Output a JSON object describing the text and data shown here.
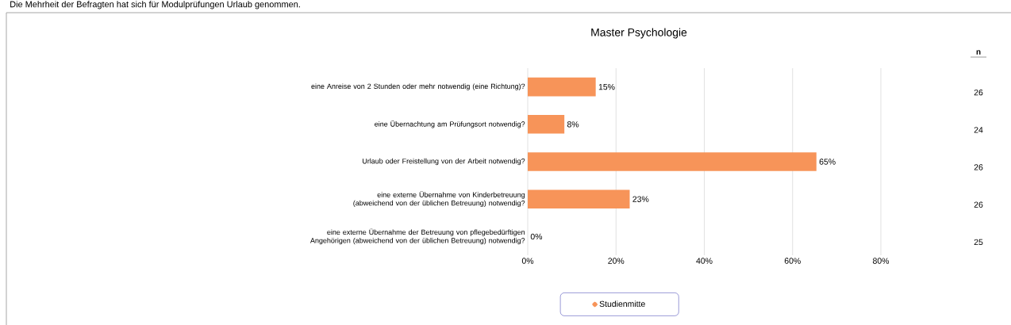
{
  "chart_data": {
    "type": "bar",
    "orientation": "horizontal",
    "title": "Master Psychologie",
    "categories": [
      "eine Anreise von 2 Stunden oder mehr notwendig (eine Richtung)?",
      "eine Übernachtung am Prüfungsort notwendig?",
      "Urlaub oder Freistellung von der Arbeit notwendig?",
      "eine externe Übernahme von Kinderbetreuung (abweichend von der üblichen Betreuung) notwendig?",
      "eine externe Übernahme der Betreuung von pflegebedürftigen Angehörigen (abweichend von der üblichen Betreuung) notwendig?"
    ],
    "series": [
      {
        "name": "Studienmitte",
        "color": "#f79459",
        "values": [
          15.4,
          8.3,
          65.4,
          23.1,
          0
        ],
        "value_labels": [
          "15%",
          "8%",
          "65%",
          "23%",
          "0%"
        ]
      }
    ],
    "xlim": [
      0,
      80
    ],
    "xticks": [
      {
        "value": 0,
        "label": "0%"
      },
      {
        "value": 20,
        "label": "20%"
      },
      {
        "value": 40,
        "label": "40%"
      },
      {
        "value": 60,
        "label": "60%"
      },
      {
        "value": 80,
        "label": "80%"
      }
    ],
    "grid": "x",
    "legend": "bottom",
    "annotations": [
      "Die Mehrheit der Befragten hat sich für Modulprüfungen Urlaub genommen.",
      "n",
      "26",
      "24",
      "26",
      "26",
      "25"
    ]
  }
}
